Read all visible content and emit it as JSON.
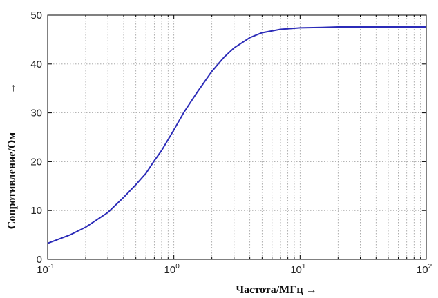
{
  "chart_data": {
    "type": "line",
    "xlabel": "Частота/МГц →",
    "ylabel": "Сопротивление/Ом",
    "ylabel_arrow": "→",
    "xscale": "log",
    "xlim": [
      0.1,
      100
    ],
    "ylim": [
      0,
      50
    ],
    "grid": true,
    "x_ticks": [
      {
        "base": "10",
        "exp": "-1"
      },
      {
        "base": "10",
        "exp": "0"
      },
      {
        "base": "10",
        "exp": "1"
      },
      {
        "base": "10",
        "exp": "2"
      }
    ],
    "y_ticks": [
      "0",
      "10",
      "20",
      "30",
      "40",
      "50"
    ],
    "series": [
      {
        "color": "#2b2bb8",
        "x": [
          0.1,
          0.15,
          0.2,
          0.3,
          0.4,
          0.5,
          0.6,
          0.7,
          0.8,
          1.0,
          1.2,
          1.5,
          2,
          2.5,
          3,
          4,
          5,
          7,
          10,
          15,
          20,
          30,
          50,
          100
        ],
        "y": [
          3.3,
          5.0,
          6.6,
          9.6,
          12.7,
          15.3,
          17.6,
          20.2,
          22.3,
          26.5,
          30.1,
          33.9,
          38.5,
          41.4,
          43.3,
          45.4,
          46.4,
          47.1,
          47.4,
          47.5,
          47.6,
          47.6,
          47.6,
          47.6
        ]
      }
    ]
  }
}
